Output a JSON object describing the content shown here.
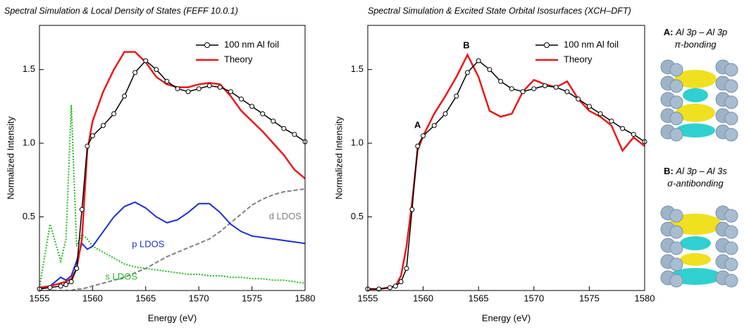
{
  "chart_data": [
    {
      "type": "line",
      "title": "Spectral Simulation & Local Density of States (FEFF 10.0.1)",
      "xlabel": "Energy (eV)",
      "ylabel": "Normalized Intensity",
      "x": [
        1555,
        1556,
        1557,
        1557.5,
        1558,
        1558.5,
        1559,
        1559.5,
        1560,
        1561,
        1562,
        1563,
        1564,
        1565,
        1566,
        1567,
        1568,
        1569,
        1570,
        1571,
        1572,
        1573,
        1574,
        1575,
        1576,
        1577,
        1578,
        1579,
        1580
      ],
      "xlim": [
        1555,
        1580
      ],
      "xticks": [
        1555,
        1560,
        1565,
        1570,
        1575,
        1580
      ],
      "ylim": [
        0,
        1.8
      ],
      "yticks": [
        0.5,
        {
          "value": 1,
          "label": "1.0"
        },
        1.5
      ],
      "legend": "upper right",
      "series": [
        {
          "name": "100 nm Al foil",
          "color": "#000000",
          "style": "solid",
          "markers": true,
          "legend": true,
          "values": [
            0.01,
            0.02,
            0.03,
            0.04,
            0.06,
            0.15,
            0.55,
            0.98,
            1.05,
            1.12,
            1.2,
            1.32,
            1.48,
            1.56,
            1.5,
            1.42,
            1.37,
            1.35,
            1.37,
            1.39,
            1.38,
            1.35,
            1.3,
            1.25,
            1.2,
            1.15,
            1.1,
            1.06,
            1.01
          ]
        },
        {
          "name": "Theory",
          "color": "#e8191c",
          "style": "solid",
          "markers": false,
          "legend": true,
          "values": [
            0.02,
            0.03,
            0.05,
            0.06,
            0.08,
            0.15,
            0.35,
            0.95,
            1.15,
            1.35,
            1.5,
            1.62,
            1.62,
            1.55,
            1.45,
            1.4,
            1.38,
            1.38,
            1.4,
            1.41,
            1.4,
            1.32,
            1.22,
            1.15,
            1.08,
            1.0,
            0.92,
            0.82,
            0.76
          ]
        },
        {
          "name": "p LDOS",
          "color": "#1d2fd0",
          "style": "solid",
          "markers": false,
          "legend": false,
          "values": [
            0.01,
            0.03,
            0.09,
            0.07,
            0.1,
            0.2,
            0.32,
            0.28,
            0.3,
            0.4,
            0.5,
            0.57,
            0.6,
            0.56,
            0.5,
            0.46,
            0.48,
            0.53,
            0.59,
            0.59,
            0.53,
            0.45,
            0.4,
            0.37,
            0.36,
            0.35,
            0.34,
            0.33,
            0.32
          ]
        },
        {
          "name": "s LDOS",
          "color": "#22bb22",
          "style": "dotted",
          "markers": false,
          "legend": false,
          "values": [
            0.02,
            0.45,
            0.2,
            0.35,
            1.26,
            0.3,
            0.38,
            0.35,
            0.3,
            0.26,
            0.22,
            0.18,
            0.16,
            0.15,
            0.14,
            0.13,
            0.12,
            0.11,
            0.11,
            0.1,
            0.1,
            0.09,
            0.09,
            0.08,
            0.08,
            0.07,
            0.07,
            0.06,
            0.05
          ]
        },
        {
          "name": "d LDOS",
          "color": "#808080",
          "style": "dashed",
          "markers": false,
          "legend": false,
          "values": [
            0,
            0,
            0,
            0,
            0,
            0.01,
            0.01,
            0.02,
            0.03,
            0.05,
            0.07,
            0.09,
            0.12,
            0.15,
            0.19,
            0.23,
            0.26,
            0.29,
            0.32,
            0.35,
            0.4,
            0.46,
            0.52,
            0.58,
            0.62,
            0.65,
            0.67,
            0.68,
            0.69
          ]
        }
      ]
    },
    {
      "type": "line",
      "title": "Spectral Simulation & Excited State Orbital Isosurfaces (XCH–DFT)",
      "xlabel": "Energy (eV)",
      "ylabel": "Normalized Intensity",
      "x": [
        1555,
        1556,
        1557,
        1557.5,
        1558,
        1558.5,
        1559,
        1559.5,
        1560,
        1561,
        1562,
        1563,
        1564,
        1565,
        1566,
        1567,
        1568,
        1569,
        1570,
        1571,
        1572,
        1573,
        1574,
        1575,
        1576,
        1577,
        1578,
        1579,
        1580
      ],
      "xlim": [
        1555,
        1580
      ],
      "xticks": [
        1555,
        1560,
        1565,
        1570,
        1575,
        1580
      ],
      "ylim": [
        0,
        1.8
      ],
      "yticks": [
        0.5,
        {
          "value": 1,
          "label": "1.0"
        },
        1.5
      ],
      "legend": "upper right",
      "annotations": [
        "A",
        "B"
      ],
      "series": [
        {
          "name": "100 nm Al foil",
          "color": "#000000",
          "style": "solid",
          "markers": true,
          "legend": true,
          "values": [
            0.01,
            0.01,
            0.02,
            0.03,
            0.06,
            0.15,
            0.55,
            0.98,
            1.05,
            1.12,
            1.2,
            1.32,
            1.48,
            1.56,
            1.5,
            1.42,
            1.37,
            1.35,
            1.37,
            1.39,
            1.38,
            1.35,
            1.3,
            1.25,
            1.2,
            1.15,
            1.1,
            1.06,
            1.01
          ]
        },
        {
          "name": "Theory",
          "color": "#e8191c",
          "style": "solid",
          "markers": false,
          "legend": true,
          "values": [
            0.01,
            0.01,
            0.02,
            0.03,
            0.1,
            0.3,
            0.6,
            0.95,
            1.05,
            1.2,
            1.32,
            1.45,
            1.6,
            1.45,
            1.22,
            1.18,
            1.2,
            1.35,
            1.43,
            1.4,
            1.38,
            1.42,
            1.3,
            1.22,
            1.18,
            1.12,
            0.95,
            1.04,
            0.98
          ]
        }
      ]
    }
  ],
  "side_panel": {
    "items": [
      {
        "tag": "A:",
        "title": "Al 3p – Al 3p",
        "subtitle": "π-bonding"
      },
      {
        "tag": "B:",
        "title": "Al 3p – Al 3s",
        "subtitle": "σ-antibonding"
      }
    ]
  }
}
